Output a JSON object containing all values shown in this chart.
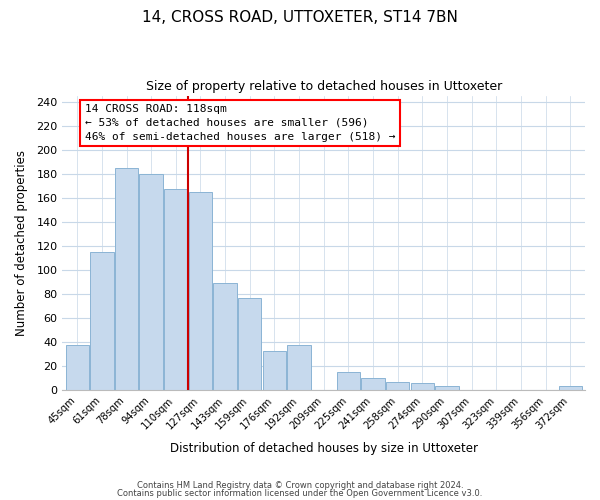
{
  "title": "14, CROSS ROAD, UTTOXETER, ST14 7BN",
  "subtitle": "Size of property relative to detached houses in Uttoxeter",
  "xlabel": "Distribution of detached houses by size in Uttoxeter",
  "ylabel": "Number of detached properties",
  "bar_labels": [
    "45sqm",
    "61sqm",
    "78sqm",
    "94sqm",
    "110sqm",
    "127sqm",
    "143sqm",
    "159sqm",
    "176sqm",
    "192sqm",
    "209sqm",
    "225sqm",
    "241sqm",
    "258sqm",
    "274sqm",
    "290sqm",
    "307sqm",
    "323sqm",
    "339sqm",
    "356sqm",
    "372sqm"
  ],
  "bar_values": [
    38,
    115,
    185,
    180,
    167,
    165,
    89,
    77,
    33,
    38,
    0,
    15,
    10,
    7,
    6,
    4,
    0,
    0,
    0,
    0,
    4
  ],
  "bar_color": "#c6d9ed",
  "bar_edge_color": "#8bb4d4",
  "vline_x": 4.5,
  "vline_color": "#cc0000",
  "annotation_box_text": "14 CROSS ROAD: 118sqm\n← 53% of detached houses are smaller (596)\n46% of semi-detached houses are larger (518) →",
  "ylim": [
    0,
    245
  ],
  "yticks": [
    0,
    20,
    40,
    60,
    80,
    100,
    120,
    140,
    160,
    180,
    200,
    220,
    240
  ],
  "footer_line1": "Contains HM Land Registry data © Crown copyright and database right 2024.",
  "footer_line2": "Contains public sector information licensed under the Open Government Licence v3.0.",
  "background_color": "#ffffff",
  "grid_color": "#c8d8e8"
}
